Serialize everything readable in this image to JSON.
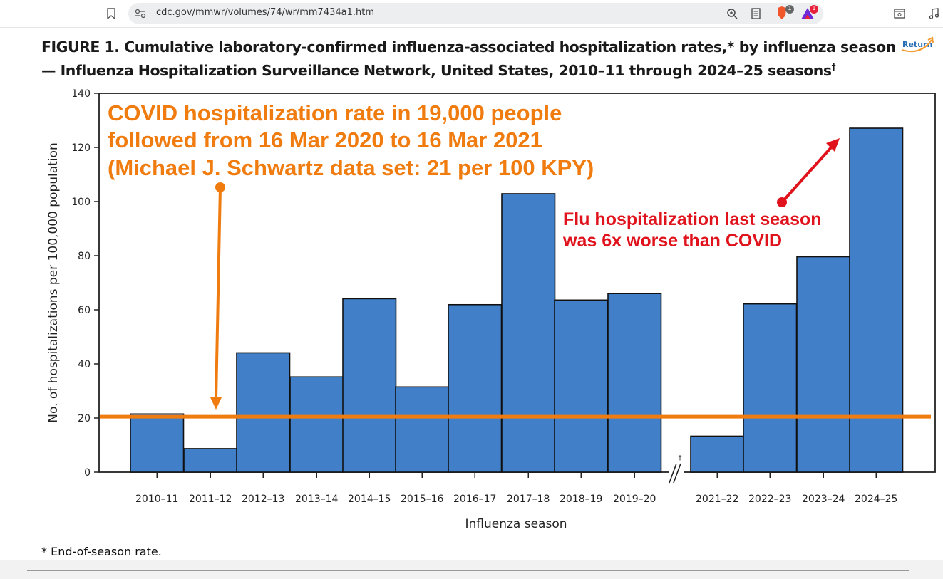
{
  "browser": {
    "url": "cdc.gov/mmwr/volumes/74/wr/mm7434a1.htm",
    "brave_badge": "1",
    "rewards_badge": "1"
  },
  "figure": {
    "title_label": "FIGURE 1",
    "title_text": ". Cumulative laboratory-confirmed influenza-associated hospitalization rates,* by influenza season — Influenza Hospitalization Surveillance Network, United States, 2010–11 through 2024–25 seasons",
    "title_dagger": "†",
    "return_label": "Return",
    "footnote": "* End-of-season rate."
  },
  "chart_data": {
    "type": "bar",
    "xlabel": "Influenza season",
    "ylabel": "No. of hospitalizations per 100,000 population",
    "ylim": [
      0,
      140
    ],
    "yticks": [
      0,
      20,
      40,
      60,
      80,
      100,
      120,
      140
    ],
    "categories": [
      "2010–11",
      "2011–12",
      "2012–13",
      "2013–14",
      "2014–15",
      "2015–16",
      "2016–17",
      "2017–18",
      "2018–19",
      "2019–20",
      "2021–22",
      "2022–23",
      "2023–24",
      "2024–25"
    ],
    "values": [
      21.5,
      8.7,
      44.1,
      35.2,
      64.1,
      31.5,
      61.9,
      102.9,
      63.6,
      66.0,
      13.3,
      62.2,
      79.6,
      127.1
    ],
    "break_after_index": 9,
    "break_mark": "†",
    "bar_color": "#4180c8",
    "reference_line": {
      "value": 20.5,
      "color": "#f07c10"
    },
    "annotations": {
      "covid_lines": [
        "COVID hospitalization rate in 19,000 people",
        "followed from 16 Mar 2020 to 16 Mar 2021",
        "(Michael J. Schwartz data set: 21 per 100 KPY)"
      ],
      "covid_color": "#f07c10",
      "flu_lines": [
        "Flu hospitalization last season",
        "was 6x worse than COVID"
      ],
      "flu_color": "#e0121c"
    }
  }
}
